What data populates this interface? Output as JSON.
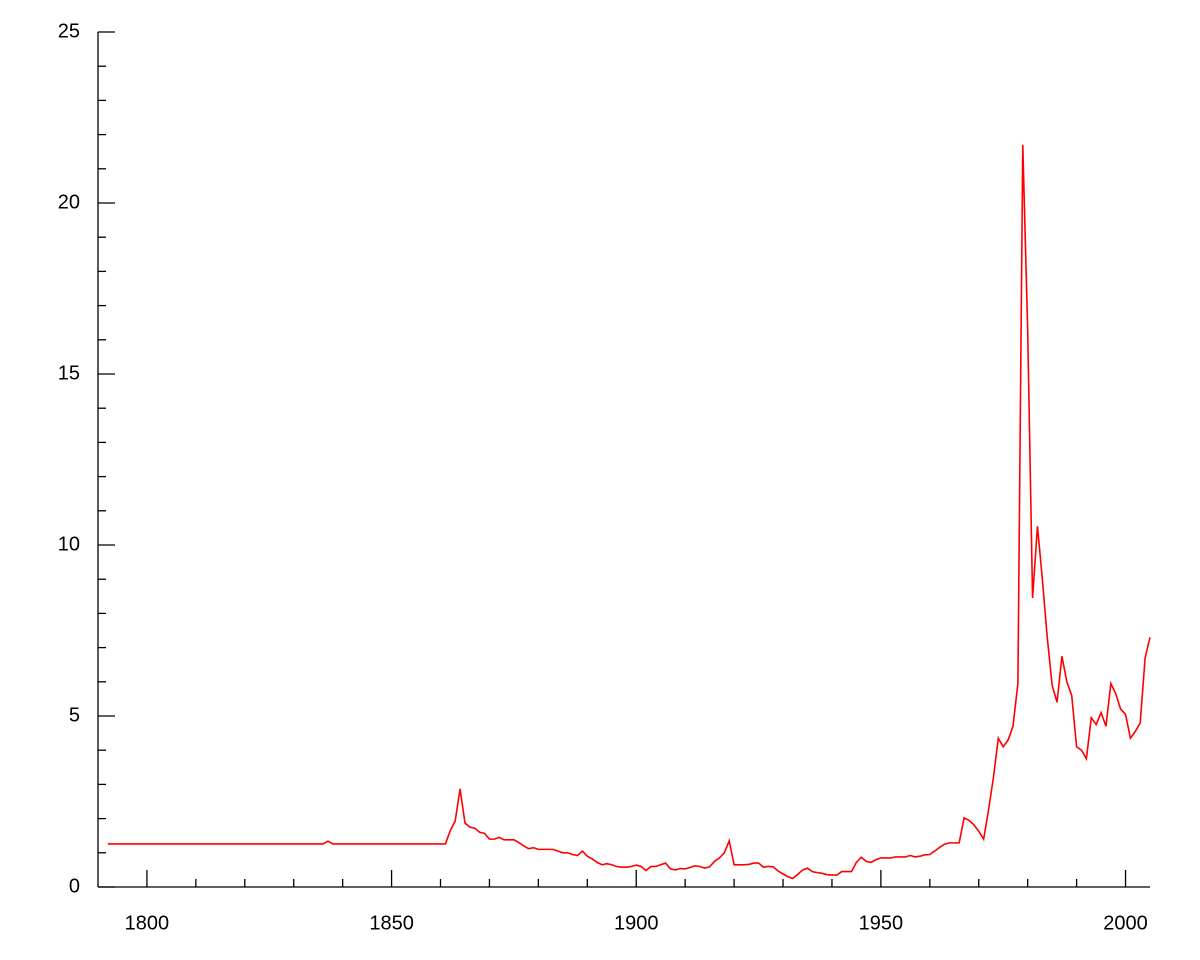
{
  "chart_data": {
    "type": "line",
    "x": [
      1792,
      1836,
      1837,
      1838,
      1861,
      1862,
      1863,
      1864,
      1865,
      1866,
      1867,
      1868,
      1869,
      1870,
      1871,
      1872,
      1873,
      1874,
      1875,
      1876,
      1877,
      1878,
      1879,
      1880,
      1881,
      1882,
      1883,
      1884,
      1885,
      1886,
      1887,
      1888,
      1889,
      1890,
      1891,
      1892,
      1893,
      1894,
      1895,
      1896,
      1897,
      1898,
      1899,
      1900,
      1901,
      1902,
      1903,
      1904,
      1905,
      1906,
      1907,
      1908,
      1909,
      1910,
      1911,
      1912,
      1913,
      1914,
      1915,
      1916,
      1917,
      1918,
      1919,
      1920,
      1921,
      1922,
      1923,
      1924,
      1925,
      1926,
      1927,
      1928,
      1929,
      1930,
      1931,
      1932,
      1933,
      1934,
      1935,
      1936,
      1937,
      1938,
      1939,
      1940,
      1941,
      1942,
      1943,
      1944,
      1945,
      1946,
      1947,
      1948,
      1949,
      1950,
      1951,
      1952,
      1953,
      1954,
      1955,
      1956,
      1957,
      1958,
      1959,
      1960,
      1961,
      1962,
      1963,
      1964,
      1965,
      1966,
      1967,
      1968,
      1969,
      1970,
      1971,
      1972,
      1973,
      1974,
      1975,
      1976,
      1977,
      1978,
      1979,
      1980,
      1981,
      1982,
      1983,
      1984,
      1985,
      1986,
      1987,
      1988,
      1989,
      1990,
      1991,
      1992,
      1993,
      1994,
      1995,
      1996,
      1997,
      1998,
      1999,
      2000,
      2001,
      2002,
      2003,
      2004,
      2005
    ],
    "series": [
      {
        "color": "#ff0000",
        "values": [
          1.26,
          1.26,
          1.34,
          1.26,
          1.26,
          1.65,
          1.93,
          2.87,
          1.87,
          1.75,
          1.72,
          1.6,
          1.57,
          1.4,
          1.4,
          1.45,
          1.38,
          1.38,
          1.38,
          1.3,
          1.2,
          1.12,
          1.15,
          1.1,
          1.1,
          1.1,
          1.1,
          1.05,
          1.0,
          1.0,
          0.95,
          0.92,
          1.05,
          0.9,
          0.82,
          0.72,
          0.65,
          0.68,
          0.65,
          0.6,
          0.58,
          0.58,
          0.6,
          0.64,
          0.6,
          0.48,
          0.6,
          0.6,
          0.65,
          0.7,
          0.53,
          0.5,
          0.54,
          0.53,
          0.57,
          0.62,
          0.6,
          0.55,
          0.59,
          0.75,
          0.85,
          1.0,
          1.35,
          0.65,
          0.65,
          0.65,
          0.66,
          0.7,
          0.7,
          0.58,
          0.6,
          0.59,
          0.47,
          0.38,
          0.3,
          0.25,
          0.37,
          0.5,
          0.55,
          0.45,
          0.42,
          0.4,
          0.36,
          0.35,
          0.35,
          0.45,
          0.45,
          0.45,
          0.72,
          0.87,
          0.75,
          0.72,
          0.8,
          0.85,
          0.85,
          0.85,
          0.88,
          0.88,
          0.88,
          0.92,
          0.88,
          0.9,
          0.94,
          0.95,
          1.05,
          1.16,
          1.25,
          1.29,
          1.29,
          1.29,
          2.02,
          1.95,
          1.82,
          1.63,
          1.4,
          2.25,
          3.2,
          4.35,
          4.1,
          4.3,
          4.7,
          5.95,
          21.7,
          16.3,
          8.45,
          10.55,
          9.0,
          7.3,
          5.9,
          5.4,
          6.75,
          6.0,
          5.6,
          4.1,
          4.0,
          3.75,
          4.95,
          4.75,
          5.1,
          4.7,
          5.95,
          5.65,
          5.2,
          5.05,
          4.35,
          4.55,
          4.8,
          6.7,
          7.3
        ]
      }
    ],
    "xlim": [
      1790,
      2005
    ],
    "ylim": [
      0,
      25
    ],
    "xticks": [
      1800,
      1850,
      1900,
      1950,
      2000
    ],
    "yticks": [
      0,
      5,
      10,
      15,
      20,
      25
    ],
    "xminorticks": [
      1810,
      1820,
      1830,
      1840,
      1860,
      1870,
      1880,
      1890,
      1910,
      1920,
      1930,
      1940,
      1960,
      1970,
      1980,
      1990
    ],
    "yminorticks": [
      1,
      2,
      3,
      4,
      6,
      7,
      8,
      9,
      11,
      12,
      13,
      14,
      16,
      17,
      18,
      19,
      21,
      22,
      23,
      24
    ]
  }
}
